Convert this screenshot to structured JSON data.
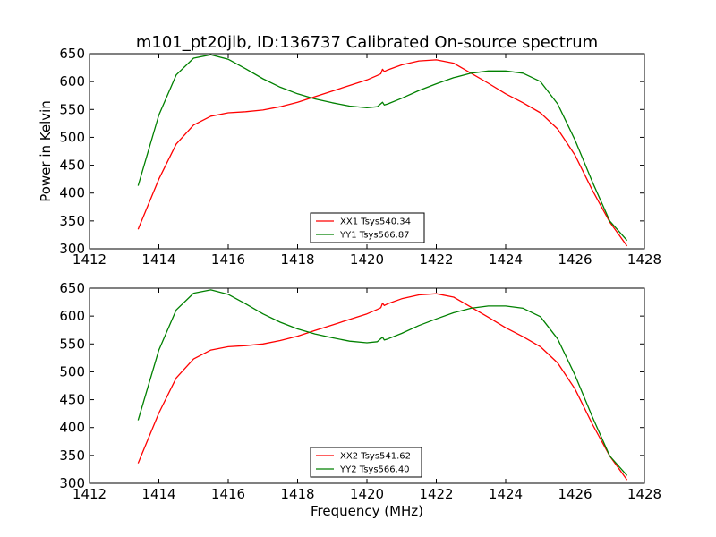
{
  "chart_data": [
    {
      "type": "line",
      "title": "m101_pt20jlb, ID:136737 Calibrated On-source spectrum",
      "xlabel": "",
      "ylabel": "Power in Kelvin",
      "xlim": [
        1412,
        1428
      ],
      "ylim": [
        300,
        650
      ],
      "xticks": [
        1412,
        1414,
        1416,
        1418,
        1420,
        1422,
        1424,
        1426,
        1428
      ],
      "yticks": [
        300,
        350,
        400,
        450,
        500,
        550,
        600,
        650
      ],
      "xtick_labels": [
        "1412",
        "1414",
        "1416",
        "1418",
        "1420",
        "1422",
        "1424",
        "1426",
        "1428"
      ],
      "ytick_labels": [
        "300",
        "350",
        "400",
        "450",
        "500",
        "550",
        "600",
        "650"
      ],
      "legend_position": "bottom-center",
      "series": [
        {
          "name": "XX1 Tsys540.34",
          "color": "#ff0000",
          "x": [
            1413.4,
            1414.0,
            1414.5,
            1415.0,
            1415.5,
            1416.0,
            1416.5,
            1417.0,
            1417.5,
            1418.0,
            1418.5,
            1419.0,
            1419.5,
            1420.0,
            1420.3,
            1420.4,
            1420.45,
            1420.5,
            1420.6,
            1421.0,
            1421.5,
            1422.0,
            1422.5,
            1423.0,
            1423.5,
            1424.0,
            1424.5,
            1425.0,
            1425.5,
            1426.0,
            1426.5,
            1427.0,
            1427.5
          ],
          "y": [
            335,
            425,
            488,
            522,
            538,
            544,
            546,
            549,
            555,
            563,
            573,
            583,
            593,
            603,
            611,
            614,
            622,
            618,
            621,
            630,
            637,
            639,
            633,
            615,
            597,
            578,
            562,
            544,
            515,
            468,
            405,
            348,
            305
          ]
        },
        {
          "name": "YY1 Tsys566.87",
          "color": "#008000",
          "x": [
            1413.4,
            1414.0,
            1414.5,
            1415.0,
            1415.5,
            1416.0,
            1416.5,
            1417.0,
            1417.5,
            1418.0,
            1418.5,
            1419.0,
            1419.5,
            1420.0,
            1420.3,
            1420.45,
            1420.5,
            1420.6,
            1421.0,
            1421.5,
            1422.0,
            1422.5,
            1423.0,
            1423.5,
            1424.0,
            1424.5,
            1425.0,
            1425.5,
            1426.0,
            1426.5,
            1427.0,
            1427.5
          ],
          "y": [
            413,
            540,
            612,
            642,
            648,
            640,
            623,
            605,
            590,
            578,
            569,
            562,
            556,
            553,
            555,
            563,
            558,
            560,
            570,
            584,
            596,
            607,
            615,
            619,
            619,
            615,
            600,
            560,
            495,
            420,
            350,
            315
          ]
        }
      ]
    },
    {
      "type": "line",
      "title": "",
      "xlabel": "Frequency (MHz)",
      "ylabel": "",
      "xlim": [
        1412,
        1428
      ],
      "ylim": [
        300,
        650
      ],
      "xticks": [
        1412,
        1414,
        1416,
        1418,
        1420,
        1422,
        1424,
        1426,
        1428
      ],
      "yticks": [
        300,
        350,
        400,
        450,
        500,
        550,
        600,
        650
      ],
      "xtick_labels": [
        "1412",
        "1414",
        "1416",
        "1418",
        "1420",
        "1422",
        "1424",
        "1426",
        "1428"
      ],
      "ytick_labels": [
        "300",
        "350",
        "400",
        "450",
        "500",
        "550",
        "600",
        "650"
      ],
      "legend_position": "bottom-center",
      "series": [
        {
          "name": "XX2 Tsys541.62",
          "color": "#ff0000",
          "x": [
            1413.4,
            1414.0,
            1414.5,
            1415.0,
            1415.5,
            1416.0,
            1416.5,
            1417.0,
            1417.5,
            1418.0,
            1418.5,
            1419.0,
            1419.5,
            1420.0,
            1420.3,
            1420.4,
            1420.45,
            1420.5,
            1420.6,
            1421.0,
            1421.5,
            1422.0,
            1422.5,
            1423.0,
            1423.5,
            1424.0,
            1424.5,
            1425.0,
            1425.5,
            1426.0,
            1426.5,
            1427.0,
            1427.5
          ],
          "y": [
            336,
            426,
            489,
            523,
            539,
            545,
            547,
            550,
            556,
            564,
            574,
            584,
            594,
            604,
            612,
            615,
            623,
            619,
            622,
            631,
            638,
            640,
            634,
            616,
            598,
            579,
            563,
            545,
            516,
            469,
            406,
            349,
            306
          ]
        },
        {
          "name": "YY2 Tsys566.40",
          "color": "#008000",
          "x": [
            1413.4,
            1414.0,
            1414.5,
            1415.0,
            1415.5,
            1416.0,
            1416.5,
            1417.0,
            1417.5,
            1418.0,
            1418.5,
            1419.0,
            1419.5,
            1420.0,
            1420.3,
            1420.45,
            1420.5,
            1420.6,
            1421.0,
            1421.5,
            1422.0,
            1422.5,
            1423.0,
            1423.5,
            1424.0,
            1424.5,
            1425.0,
            1425.5,
            1426.0,
            1426.5,
            1427.0,
            1427.5
          ],
          "y": [
            413,
            539,
            611,
            641,
            647,
            639,
            622,
            604,
            589,
            577,
            568,
            561,
            555,
            552,
            554,
            562,
            557,
            559,
            569,
            583,
            595,
            606,
            614,
            618,
            618,
            614,
            599,
            559,
            494,
            419,
            349,
            314
          ]
        }
      ]
    }
  ]
}
